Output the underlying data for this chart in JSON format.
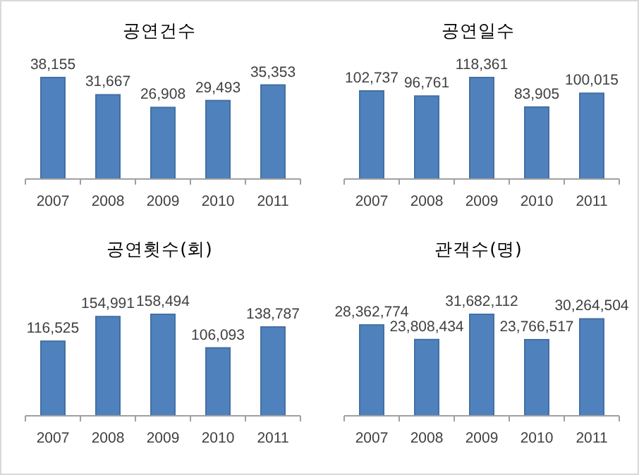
{
  "chart_data": [
    {
      "type": "bar",
      "title": "공연건수",
      "categories": [
        "2007",
        "2008",
        "2009",
        "2010",
        "2011"
      ],
      "values": [
        38155,
        31667,
        26908,
        29493,
        35353
      ],
      "value_labels": [
        "38,155",
        "31,667",
        "26,908",
        "29,493",
        "35,353"
      ],
      "color": "#4f81bd",
      "tick_labels": "x"
    },
    {
      "type": "bar",
      "title": "공연일수",
      "categories": [
        "2007",
        "2008",
        "2009",
        "2010",
        "2011"
      ],
      "values": [
        102737,
        96761,
        118361,
        83905,
        100015
      ],
      "value_labels": [
        "102,737",
        "96,761",
        "118,361",
        "83,905",
        "100,015"
      ],
      "color": "#4f81bd",
      "tick_labels": "x"
    },
    {
      "type": "bar",
      "title": "공연횟수(회)",
      "categories": [
        "2007",
        "2008",
        "2009",
        "2010",
        "2011"
      ],
      "values": [
        116525,
        154991,
        158494,
        106093,
        138787
      ],
      "value_labels": [
        "116,525",
        "154,991",
        "158,494",
        "106,093",
        "138,787"
      ],
      "color": "#4f81bd",
      "tick_labels": "x"
    },
    {
      "type": "bar",
      "title": "관객수(명)",
      "categories": [
        "2007",
        "2008",
        "2009",
        "2010",
        "2011"
      ],
      "values": [
        28362774,
        23808434,
        31682112,
        23766517,
        30264504
      ],
      "value_labels": [
        "28,362,774",
        "23,808,434",
        "31,682,112",
        "23,766,517",
        "30,264,504"
      ],
      "color": "#4f81bd",
      "tick_labels": "x"
    }
  ]
}
